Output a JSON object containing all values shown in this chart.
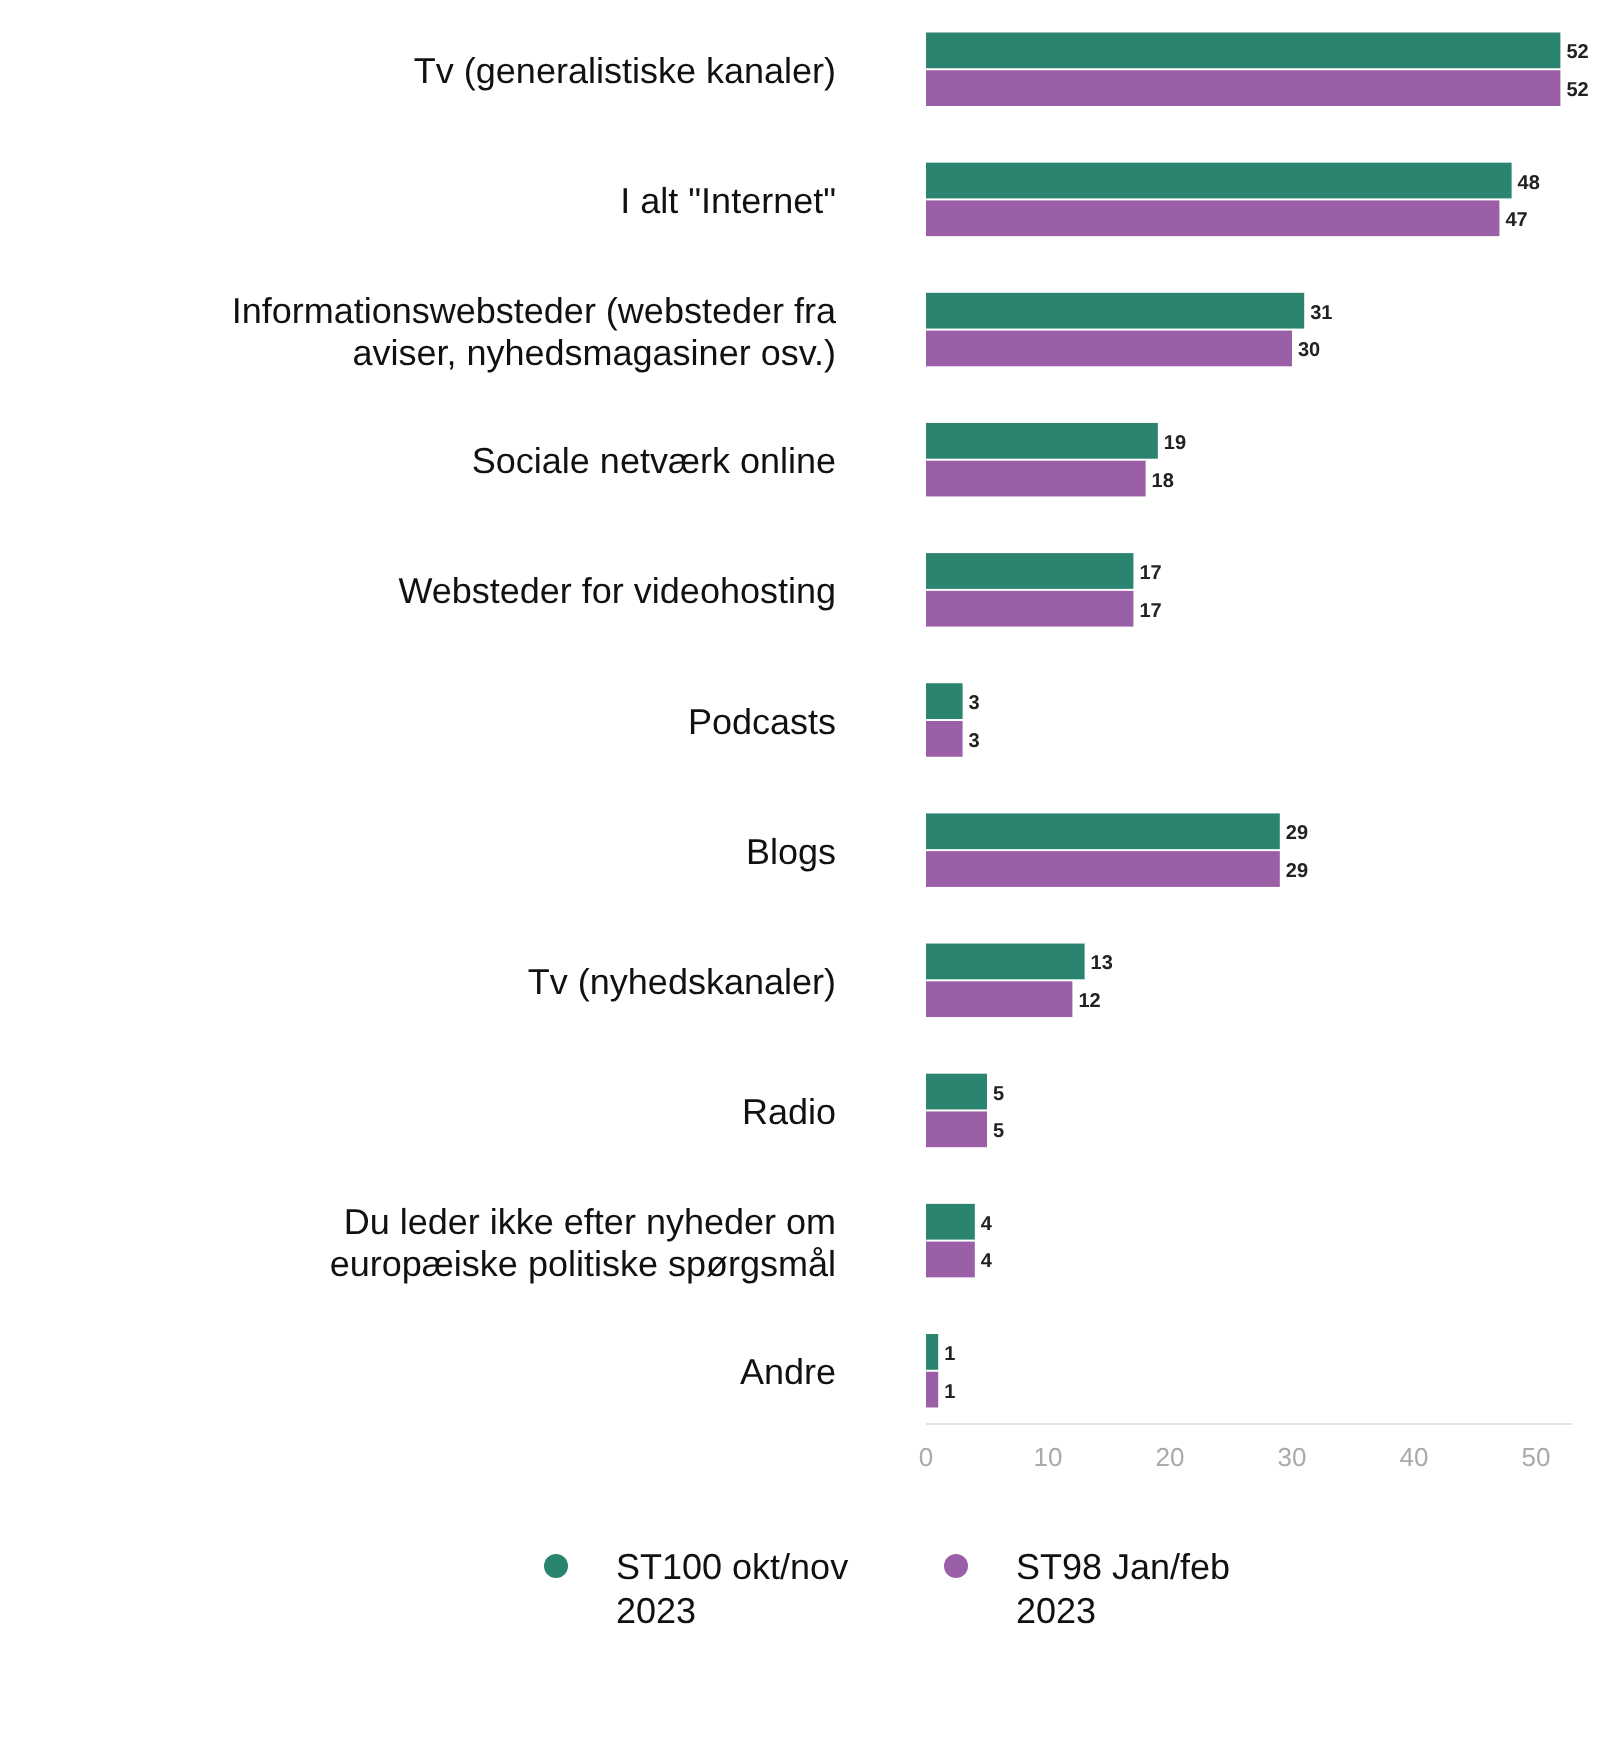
{
  "chart_data": {
    "type": "bar",
    "orientation": "horizontal",
    "categories": [
      "Tv (generalistiske kanaler)",
      "I alt \"Internet\"",
      "Informationswebsteder (websteder fra aviser, nyhedsmagasiner osv.)",
      "Sociale netværk online",
      "Websteder for videohosting",
      "Podcasts",
      "Blogs",
      "Tv (nyhedskanaler)",
      "Radio",
      "Du leder ikke efter nyheder om europæiske politiske spørgsmål",
      "Andre"
    ],
    "series": [
      {
        "name": "ST100 okt/nov 2023",
        "color": "#2a8470",
        "values": [
          52,
          48,
          31,
          19,
          17,
          3,
          29,
          13,
          5,
          4,
          1
        ]
      },
      {
        "name": "ST98 Jan/feb 2023",
        "color": "#9b5fa8",
        "values": [
          52,
          47,
          30,
          18,
          17,
          3,
          29,
          12,
          5,
          4,
          1
        ]
      }
    ],
    "xlim": [
      0,
      53
    ],
    "xticks": [
      0,
      10,
      20,
      30,
      40,
      50
    ],
    "grid": false,
    "legend": "bottom",
    "data_labels": true
  }
}
